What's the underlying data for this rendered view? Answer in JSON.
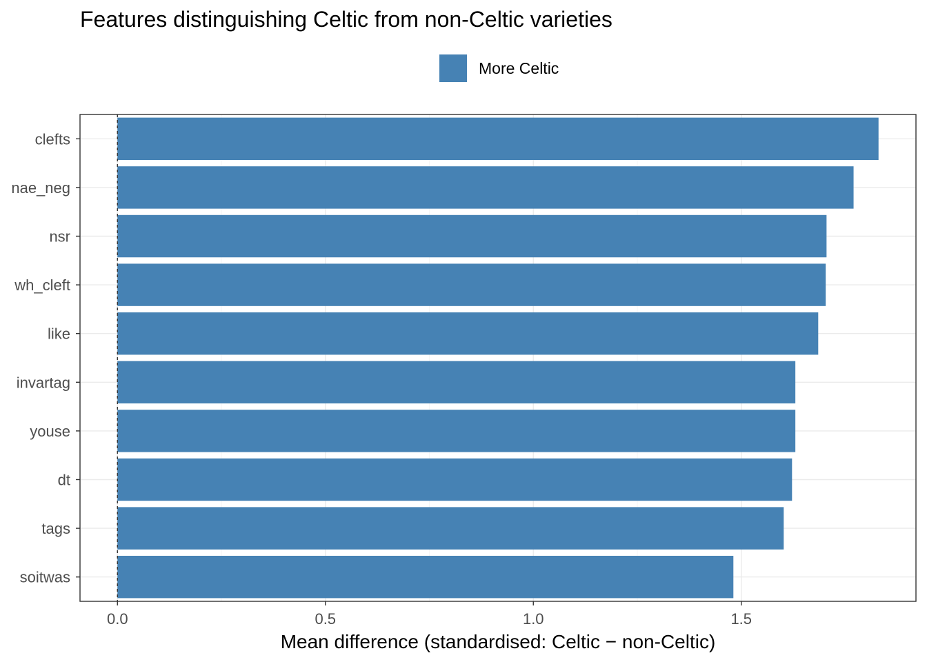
{
  "chart_data": {
    "type": "bar",
    "orientation": "horizontal",
    "title": "Features distinguishing Celtic from non-Celtic varieties",
    "xlabel": "Mean difference (standardised: Celtic − non-Celtic)",
    "ylabel": "",
    "categories": [
      "clefts",
      "nae_neg",
      "nsr",
      "wh_cleft",
      "like",
      "invartag",
      "youse",
      "dt",
      "tags",
      "soitwas"
    ],
    "series": [
      {
        "name": "More Celtic",
        "color": "#4682B4",
        "values": [
          1.83,
          1.77,
          1.705,
          1.703,
          1.685,
          1.63,
          1.63,
          1.622,
          1.602,
          1.481
        ]
      }
    ],
    "xlim": [
      -0.09,
      1.92
    ],
    "xticks": [
      0.0,
      0.5,
      1.0,
      1.5
    ],
    "xtick_labels": [
      "0.0",
      "0.5",
      "1.0",
      "1.5"
    ],
    "reference_line": {
      "x": 0,
      "style": "dashed"
    },
    "grid": true,
    "legend_position": "top"
  }
}
